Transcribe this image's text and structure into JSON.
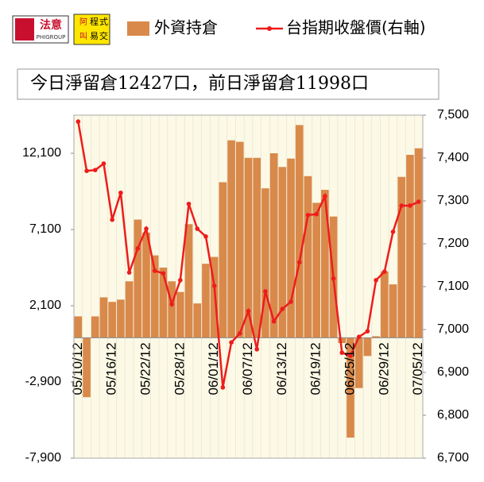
{
  "logo": {
    "name": "法意",
    "sub": "PHIGROUP",
    "badge": [
      "阿",
      "程",
      "式",
      "叫",
      "易",
      "交"
    ]
  },
  "chart_data": {
    "type": "bar-line",
    "annotation": "今日淨留倉12427口，前日淨留倉11998口",
    "categories": [
      "05/10/12",
      null,
      null,
      null,
      "05/16/12",
      null,
      null,
      null,
      "05/22/12",
      null,
      null,
      null,
      "05/28/12",
      null,
      null,
      null,
      "06/01/12",
      null,
      null,
      null,
      "06/07/12",
      null,
      null,
      null,
      "06/13/12",
      null,
      null,
      null,
      "06/19/12",
      null,
      null,
      null,
      "06/25/12",
      null,
      null,
      null,
      "06/29/12",
      null,
      null,
      null,
      "07/05/12"
    ],
    "series": [
      {
        "name": "外資持倉",
        "color": "#d9894a",
        "type": "bar",
        "values": [
          1400,
          -3900,
          1400,
          2650,
          2350,
          2500,
          3700,
          7750,
          6900,
          5400,
          4600,
          3700,
          3000,
          7450,
          2250,
          4850,
          5300,
          10200,
          12950,
          12850,
          11800,
          11800,
          9800,
          12100,
          11200,
          11750,
          13950,
          10600,
          8850,
          9700,
          7950,
          -350,
          -6550,
          -3300,
          -1200,
          100,
          4350,
          3500,
          10550,
          11998,
          12427
        ]
      },
      {
        "name": "台指期收盤價(右軸)",
        "color": "#ee1c1c",
        "type": "line",
        "axis": "y2",
        "values": [
          7485,
          7370,
          7372,
          7387,
          7256,
          7319,
          7133,
          7189,
          7235,
          7137,
          7131,
          7059,
          7115,
          7293,
          7235,
          7217,
          7102,
          6865,
          6970,
          6991,
          7043,
          6954,
          7089,
          7019,
          7048,
          7065,
          7157,
          7267,
          7269,
          7311,
          7119,
          6946,
          6939,
          6983,
          6996,
          7115,
          7135,
          7228,
          7289,
          7289,
          7298
        ]
      }
    ],
    "ylim": [
      -7900,
      14600
    ],
    "yticks": [
      {
        "value": -7900,
        "label": "-7,900"
      },
      {
        "value": -2900,
        "label": "-2,900"
      },
      {
        "value": 2100,
        "label": "2,100"
      },
      {
        "value": 7100,
        "label": "7,100"
      },
      {
        "value": 12100,
        "label": "12,100"
      }
    ],
    "y2lim": [
      6700,
      7500
    ],
    "y2ticks": [
      {
        "value": 6700,
        "label": "6,700"
      },
      {
        "value": 6800,
        "label": "6,800"
      },
      {
        "value": 6900,
        "label": "6,900"
      },
      {
        "value": 7000,
        "label": "7,000"
      },
      {
        "value": 7100,
        "label": "7,100"
      },
      {
        "value": 7200,
        "label": "7,200"
      },
      {
        "value": 7300,
        "label": "7,300"
      },
      {
        "value": 7400,
        "label": "7,400"
      },
      {
        "value": 7500,
        "label": "7,500"
      }
    ]
  }
}
